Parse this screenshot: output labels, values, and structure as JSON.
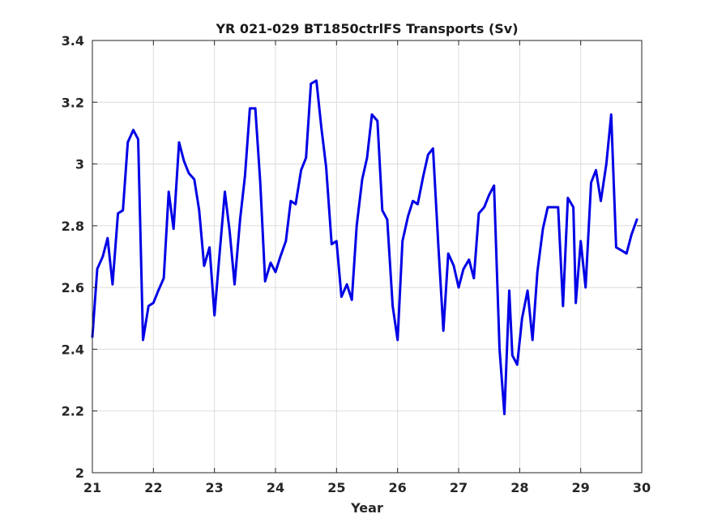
{
  "chart_data": {
    "type": "line",
    "title": "YR 021-029 BT1850ctrlFS Transports (Sv)",
    "xlabel": "Year",
    "ylabel": "",
    "xlim": [
      21,
      30
    ],
    "ylim": [
      2,
      3.4
    ],
    "xticks": [
      21,
      22,
      23,
      24,
      25,
      26,
      27,
      28,
      29,
      30
    ],
    "xtick_labels": [
      "21",
      "22",
      "23",
      "24",
      "25",
      "26",
      "27",
      "28",
      "29",
      "30"
    ],
    "yticks": [
      2,
      2.2,
      2.4,
      2.6,
      2.8,
      3,
      3.2,
      3.4
    ],
    "ytick_labels": [
      "2",
      "2.2",
      "2.4",
      "2.6",
      "2.8",
      "3",
      "3.2",
      "3.4"
    ],
    "grid": true,
    "colors": {
      "series": "#0000e6",
      "grid": "#dcdcdc",
      "axes": "#262626"
    },
    "series": [
      {
        "values": [
          [
            21.0,
            2.44
          ],
          [
            21.08,
            2.66
          ],
          [
            21.17,
            2.7
          ],
          [
            21.25,
            2.76
          ],
          [
            21.33,
            2.61
          ],
          [
            21.42,
            2.84
          ],
          [
            21.5,
            2.85
          ],
          [
            21.58,
            3.07
          ],
          [
            21.67,
            3.11
          ],
          [
            21.75,
            3.08
          ],
          [
            21.83,
            2.43
          ],
          [
            21.92,
            2.54
          ],
          [
            22.0,
            2.55
          ],
          [
            22.08,
            2.59
          ],
          [
            22.17,
            2.63
          ],
          [
            22.25,
            2.91
          ],
          [
            22.33,
            2.79
          ],
          [
            22.42,
            3.07
          ],
          [
            22.5,
            3.01
          ],
          [
            22.58,
            2.97
          ],
          [
            22.67,
            2.95
          ],
          [
            22.75,
            2.85
          ],
          [
            22.83,
            2.67
          ],
          [
            22.92,
            2.73
          ],
          [
            23.0,
            2.51
          ],
          [
            23.08,
            2.7
          ],
          [
            23.17,
            2.91
          ],
          [
            23.25,
            2.78
          ],
          [
            23.33,
            2.61
          ],
          [
            23.42,
            2.82
          ],
          [
            23.5,
            2.96
          ],
          [
            23.58,
            3.18
          ],
          [
            23.67,
            3.18
          ],
          [
            23.75,
            2.94
          ],
          [
            23.83,
            2.62
          ],
          [
            23.92,
            2.68
          ],
          [
            24.0,
            2.65
          ],
          [
            24.08,
            2.7
          ],
          [
            24.17,
            2.75
          ],
          [
            24.25,
            2.88
          ],
          [
            24.33,
            2.87
          ],
          [
            24.42,
            2.98
          ],
          [
            24.5,
            3.02
          ],
          [
            24.58,
            3.26
          ],
          [
            24.67,
            3.27
          ],
          [
            24.75,
            3.12
          ],
          [
            24.83,
            2.99
          ],
          [
            24.92,
            2.74
          ],
          [
            25.0,
            2.75
          ],
          [
            25.08,
            2.57
          ],
          [
            25.17,
            2.61
          ],
          [
            25.25,
            2.56
          ],
          [
            25.33,
            2.8
          ],
          [
            25.42,
            2.95
          ],
          [
            25.5,
            3.02
          ],
          [
            25.58,
            3.16
          ],
          [
            25.67,
            3.14
          ],
          [
            25.75,
            2.85
          ],
          [
            25.83,
            2.82
          ],
          [
            25.92,
            2.54
          ],
          [
            26.0,
            2.43
          ],
          [
            26.08,
            2.75
          ],
          [
            26.17,
            2.83
          ],
          [
            26.25,
            2.88
          ],
          [
            26.33,
            2.87
          ],
          [
            26.42,
            2.96
          ],
          [
            26.5,
            3.03
          ],
          [
            26.58,
            3.05
          ],
          [
            26.67,
            2.73
          ],
          [
            26.75,
            2.46
          ],
          [
            26.83,
            2.71
          ],
          [
            26.92,
            2.67
          ],
          [
            27.0,
            2.6
          ],
          [
            27.08,
            2.66
          ],
          [
            27.17,
            2.69
          ],
          [
            27.25,
            2.63
          ],
          [
            27.33,
            2.84
          ],
          [
            27.42,
            2.86
          ],
          [
            27.5,
            2.9
          ],
          [
            27.58,
            2.93
          ],
          [
            27.67,
            2.4
          ],
          [
            27.75,
            2.19
          ],
          [
            27.83,
            2.59
          ],
          [
            27.88,
            2.38
          ],
          [
            27.96,
            2.35
          ],
          [
            28.04,
            2.5
          ],
          [
            28.13,
            2.59
          ],
          [
            28.21,
            2.43
          ],
          [
            28.29,
            2.65
          ],
          [
            28.38,
            2.79
          ],
          [
            28.46,
            2.86
          ],
          [
            28.54,
            2.86
          ],
          [
            28.63,
            2.86
          ],
          [
            28.71,
            2.54
          ],
          [
            28.79,
            2.89
          ],
          [
            28.88,
            2.86
          ],
          [
            28.92,
            2.55
          ],
          [
            29.0,
            2.75
          ],
          [
            29.08,
            2.6
          ],
          [
            29.17,
            2.94
          ],
          [
            29.25,
            2.98
          ],
          [
            29.33,
            2.88
          ],
          [
            29.42,
            3.0
          ],
          [
            29.5,
            3.16
          ],
          [
            29.58,
            2.73
          ],
          [
            29.67,
            2.72
          ],
          [
            29.75,
            2.71
          ],
          [
            29.83,
            2.77
          ],
          [
            29.92,
            2.82
          ]
        ]
      }
    ]
  }
}
